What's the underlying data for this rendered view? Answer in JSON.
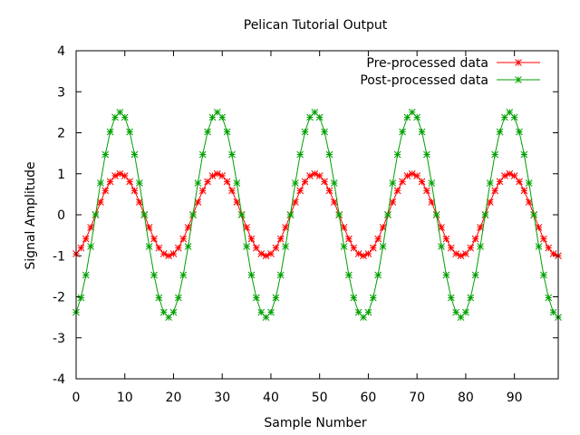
{
  "chart_data": {
    "type": "line",
    "title": "Pelican Tutorial Output",
    "xlabel": "Sample Number",
    "ylabel": "Signal Amplitude",
    "xlim": [
      0,
      99
    ],
    "ylim": [
      -4,
      4
    ],
    "xticks": [
      0,
      10,
      20,
      30,
      40,
      50,
      60,
      70,
      80,
      90
    ],
    "yticks": [
      -4,
      -3,
      -2,
      -1,
      0,
      1,
      2,
      3,
      4
    ],
    "grid": false,
    "legend_position": "top-right",
    "x": [
      0,
      1,
      2,
      3,
      4,
      5,
      6,
      7,
      8,
      9,
      10,
      11,
      12,
      13,
      14,
      15,
      16,
      17,
      18,
      19,
      20,
      21,
      22,
      23,
      24,
      25,
      26,
      27,
      28,
      29,
      30,
      31,
      32,
      33,
      34,
      35,
      36,
      37,
      38,
      39,
      40,
      41,
      42,
      43,
      44,
      45,
      46,
      47,
      48,
      49,
      50,
      51,
      52,
      53,
      54,
      55,
      56,
      57,
      58,
      59,
      60,
      61,
      62,
      63,
      64,
      65,
      66,
      67,
      68,
      69,
      70,
      71,
      72,
      73,
      74,
      75,
      76,
      77,
      78,
      79,
      80,
      81,
      82,
      83,
      84,
      85,
      86,
      87,
      88,
      89,
      90,
      91,
      92,
      93,
      94,
      95,
      96,
      97,
      98,
      99
    ],
    "series": [
      {
        "name": "Pre-processed data",
        "color": "#ff0000",
        "marker": "asterisk",
        "values": [
          -0.951,
          -0.809,
          -0.588,
          -0.309,
          0.0,
          0.309,
          0.588,
          0.809,
          0.951,
          1.0,
          0.951,
          0.809,
          0.588,
          0.309,
          0.0,
          -0.309,
          -0.588,
          -0.809,
          -0.951,
          -1.0,
          -0.951,
          -0.809,
          -0.588,
          -0.309,
          0.0,
          0.309,
          0.588,
          0.809,
          0.951,
          1.0,
          0.951,
          0.809,
          0.588,
          0.309,
          0.0,
          -0.309,
          -0.588,
          -0.809,
          -0.951,
          -1.0,
          -0.951,
          -0.809,
          -0.588,
          -0.309,
          0.0,
          0.309,
          0.588,
          0.809,
          0.951,
          1.0,
          0.951,
          0.809,
          0.588,
          0.309,
          0.0,
          -0.309,
          -0.588,
          -0.809,
          -0.951,
          -1.0,
          -0.951,
          -0.809,
          -0.588,
          -0.309,
          0.0,
          0.309,
          0.588,
          0.809,
          0.951,
          1.0,
          0.951,
          0.809,
          0.588,
          0.309,
          0.0,
          -0.309,
          -0.588,
          -0.809,
          -0.951,
          -1.0,
          -0.951,
          -0.809,
          -0.588,
          -0.309,
          0.0,
          0.309,
          0.588,
          0.809,
          0.951,
          1.0,
          0.951,
          0.809,
          0.588,
          0.309,
          0.0,
          -0.309,
          -0.588,
          -0.809,
          -0.951,
          -1.0
        ]
      },
      {
        "name": "Post-processed data",
        "color": "#00a000",
        "marker": "asterisk",
        "values": [
          -2.378,
          -2.023,
          -1.469,
          -0.773,
          0.0,
          0.773,
          1.469,
          2.023,
          2.378,
          2.5,
          2.378,
          2.023,
          1.469,
          0.773,
          0.0,
          -0.773,
          -1.469,
          -2.023,
          -2.378,
          -2.5,
          -2.378,
          -2.023,
          -1.469,
          -0.773,
          0.0,
          0.773,
          1.469,
          2.023,
          2.378,
          2.5,
          2.378,
          2.023,
          1.469,
          0.773,
          0.0,
          -0.773,
          -1.469,
          -2.023,
          -2.378,
          -2.5,
          -2.378,
          -2.023,
          -1.469,
          -0.773,
          0.0,
          0.773,
          1.469,
          2.023,
          2.378,
          2.5,
          2.378,
          2.023,
          1.469,
          0.773,
          0.0,
          -0.773,
          -1.469,
          -2.023,
          -2.378,
          -2.5,
          -2.378,
          -2.023,
          -1.469,
          -0.773,
          0.0,
          0.773,
          1.469,
          2.023,
          2.378,
          2.5,
          2.378,
          2.023,
          1.469,
          0.773,
          0.0,
          -0.773,
          -1.469,
          -2.023,
          -2.378,
          -2.5,
          -2.378,
          -2.023,
          -1.469,
          -0.773,
          0.0,
          0.773,
          1.469,
          2.023,
          2.378,
          2.5,
          2.378,
          2.023,
          1.469,
          0.773,
          0.0,
          -0.773,
          -1.469,
          -2.023,
          -2.378,
          -2.5
        ]
      }
    ]
  }
}
